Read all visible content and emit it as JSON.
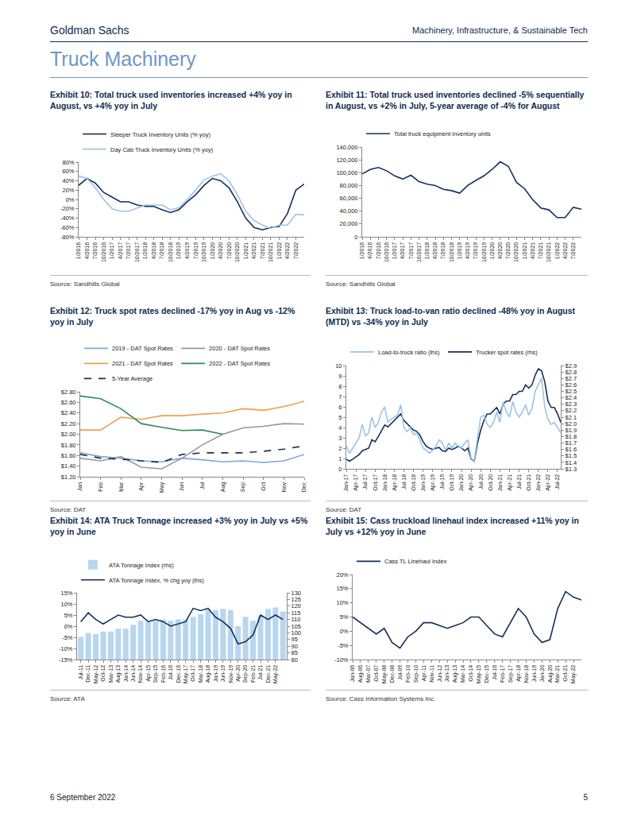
{
  "page": {
    "header_left": "Goldman Sachs",
    "header_right": "Machinery, Infrastructure, & Sustainable Tech",
    "section_title": "Truck Machinery",
    "footer_left": "6 September 2022",
    "footer_right": "5"
  },
  "chart_data": [
    {
      "type": "line",
      "title": "Exhibit 10: Total truck used inventories increased +4% yoy in August, vs +4% yoy in July",
      "source": "Source: Sandhills Global",
      "legend": "top",
      "grid": false,
      "categories": [
        "1/2016",
        "4/2016",
        "7/2016",
        "10/2016",
        "1/2017",
        "4/2017",
        "7/2017",
        "10/2017",
        "1/2018",
        "4/2018",
        "7/2018",
        "10/2018",
        "1/2019",
        "4/2019",
        "7/2019",
        "10/2019",
        "1/2020",
        "4/2020",
        "7/2020",
        "10/2020",
        "1/2021",
        "4/2021",
        "7/2021",
        "10/2021",
        "1/2022",
        "4/2022",
        "7/2022",
        null
      ],
      "series": [
        {
          "name": "Sleeper Truck Inventory Units (% yoy)",
          "color": "#14305c",
          "values": [
            30,
            45,
            35,
            15,
            5,
            -5,
            -5,
            -12,
            -15,
            -15,
            -22,
            -28,
            -22,
            -5,
            10,
            30,
            45,
            40,
            25,
            -5,
            -40,
            -60,
            -65,
            -60,
            -58,
            -30,
            20,
            33
          ]
        },
        {
          "name": "Day Cab Truck Inventory Units (% yoy)",
          "color": "#9dc3e6",
          "values": [
            50,
            45,
            25,
            0,
            -20,
            -25,
            -25,
            -18,
            -12,
            -12,
            -12,
            -22,
            -18,
            0,
            20,
            42,
            50,
            55,
            40,
            10,
            -25,
            -45,
            -55,
            -62,
            -55,
            -55,
            -32,
            -33
          ]
        }
      ],
      "ylim": [
        -80,
        80
      ],
      "yticks": [
        {
          "value": -80,
          "label": "-80%"
        },
        {
          "value": -60,
          "label": "-60%"
        },
        {
          "value": -40,
          "label": "-40%"
        },
        {
          "value": -20,
          "label": "-20%"
        },
        {
          "value": 0,
          "label": "0%"
        },
        {
          "value": 20,
          "label": "20%"
        },
        {
          "value": 40,
          "label": "40%"
        },
        {
          "value": 60,
          "label": "60%"
        },
        {
          "value": 80,
          "label": "80%"
        }
      ]
    },
    {
      "type": "line",
      "title": "Exhibit 11: Total truck used inventories declined -5% sequentially in August, vs +2% in July, 5-year average of -4% for August",
      "source": "Source: Sandhills Global",
      "legend": "top",
      "grid": false,
      "categories": [
        "1/2016",
        "4/2016",
        "7/2016",
        "10/2016",
        "1/2017",
        "4/2017",
        "7/2017",
        "10/2017",
        "1/2018",
        "4/2018",
        "7/2018",
        "10/2018",
        "1/2019",
        "4/2019",
        "7/2019",
        "10/2019",
        "1/2020",
        "4/2020",
        "7/2020",
        "10/2020",
        "1/2021",
        "4/2021",
        "7/2021",
        "10/2021",
        "1/2022",
        "4/2022",
        "7/2022",
        null
      ],
      "series": [
        {
          "name": "Total truck equipment inventory units",
          "color": "#14305c",
          "values": [
            98000,
            105000,
            108000,
            103000,
            95000,
            90000,
            96000,
            86000,
            82000,
            80000,
            74000,
            72000,
            68000,
            80000,
            88000,
            95000,
            105000,
            117000,
            110000,
            85000,
            75000,
            58000,
            45000,
            42000,
            30000,
            30000,
            46000,
            43000
          ]
        }
      ],
      "ylim": [
        0,
        140000
      ],
      "yticks": [
        0,
        {
          "value": 20000,
          "label": "20,000"
        },
        {
          "value": 40000,
          "label": "40,000"
        },
        {
          "value": 60000,
          "label": "60,000"
        },
        {
          "value": 80000,
          "label": "80,000"
        },
        {
          "value": 100000,
          "label": "100,000"
        },
        {
          "value": 120000,
          "label": "120,000"
        },
        {
          "value": 140000,
          "label": "140,000"
        }
      ]
    },
    {
      "type": "line",
      "title": "Exhibit 12: Truck spot rates declined -17% yoy in Aug vs -12% yoy in July",
      "source": "Source: DAT",
      "legend": "top",
      "grid": false,
      "categories": [
        "Jan",
        "Feb",
        "Mar",
        "Apr",
        "May",
        "Jun",
        "Jul",
        "Aug",
        "Sep",
        "Oct",
        "Nov",
        "Dec"
      ],
      "series": [
        {
          "name": "2019 - DAT Spot Rates",
          "color": "#7fa7d6",
          "values": [
            1.65,
            1.58,
            1.55,
            1.5,
            1.48,
            1.55,
            1.52,
            1.48,
            1.5,
            1.47,
            1.5,
            1.62
          ]
        },
        {
          "name": "2020 - DAT Spot Rates",
          "color": "#999999",
          "values": [
            1.55,
            1.5,
            1.58,
            1.38,
            1.35,
            1.55,
            1.8,
            2.0,
            2.12,
            2.15,
            2.2,
            2.19
          ]
        },
        {
          "name": "2021 - DAT Spot Rates",
          "color": "#f0a050",
          "values": [
            2.08,
            2.08,
            2.32,
            2.28,
            2.35,
            2.35,
            2.38,
            2.4,
            2.48,
            2.45,
            2.52,
            2.62
          ]
        },
        {
          "name": "2022 - DAT Spot Rates",
          "color": "#2e8b57",
          "values": [
            2.72,
            2.67,
            2.48,
            2.2,
            2.13,
            2.07,
            2.08,
            2.0,
            null,
            null,
            null,
            null
          ]
        },
        {
          "name": "5-Year Average",
          "color": "#14305c",
          "line_style": "dashed",
          "values": [
            1.62,
            1.55,
            1.53,
            1.5,
            1.47,
            1.62,
            1.65,
            1.65,
            1.65,
            1.68,
            1.72,
            1.78
          ]
        }
      ],
      "ylim": [
        1.2,
        2.8
      ],
      "yticks": [
        {
          "value": 1.2,
          "label": "$1.20"
        },
        {
          "value": 1.4,
          "label": "$1.40"
        },
        {
          "value": 1.6,
          "label": "$1.60"
        },
        {
          "value": 1.8,
          "label": "$1.80"
        },
        {
          "value": 2.0,
          "label": "$2.00"
        },
        {
          "value": 2.2,
          "label": "$2.20"
        },
        {
          "value": 2.4,
          "label": "$2.40"
        },
        {
          "value": 2.6,
          "label": "$2.60"
        },
        {
          "value": 2.8,
          "label": "$2.80"
        }
      ]
    },
    {
      "type": "line",
      "title": "Exhibit 13: Truck load-to-van ratio declined -48% yoy in August (MTD) vs -34% yoy in July",
      "source": "Source: DAT",
      "legend": "top",
      "grid": false,
      "categories": [
        "Jan-17",
        null,
        null,
        "Apr-17",
        null,
        null,
        "Jul-17",
        null,
        null,
        "Oct-17",
        null,
        null,
        "Jan-18",
        null,
        null,
        "Apr-18",
        null,
        null,
        "Jul-18",
        null,
        null,
        "Oct-18",
        null,
        null,
        "Jan-19",
        null,
        null,
        "Apr-19",
        null,
        null,
        "Jul-19",
        null,
        null,
        "Oct-19",
        null,
        null,
        "Jan-20",
        null,
        null,
        "Apr-20",
        null,
        null,
        "Jul-20",
        null,
        null,
        "Oct-20",
        null,
        null,
        "Jan-21",
        null,
        null,
        "Apr-21",
        null,
        null,
        "Jul-21",
        null,
        null,
        "Oct-21",
        null,
        null,
        "Jan-22",
        null,
        null,
        "Apr-22",
        null,
        null,
        "Jul-22",
        null
      ],
      "series": [
        {
          "name": "Load-to-truck ratio (lhs)",
          "color": "#9dc3e6",
          "values": [
            2.2,
            1.5,
            2.0,
            2.5,
            3.0,
            4.3,
            3.2,
            3.5,
            5.0,
            4.0,
            4.5,
            5.5,
            6.0,
            4.5,
            4.8,
            5.0,
            5.2,
            6.2,
            4.0,
            3.6,
            4.0,
            3.3,
            3.5,
            2.8,
            2.0,
            1.8,
            1.5,
            1.8,
            2.2,
            2.8,
            2.5,
            1.8,
            2.5,
            2.0,
            2.5,
            2.2,
            2.0,
            2.5,
            2.8,
            1.0,
            0.8,
            3.0,
            5.0,
            5.2,
            4.3,
            4.0,
            4.5,
            5.5,
            4.5,
            6.5,
            5.5,
            5.0,
            6.5,
            5.5,
            5.0,
            5.5,
            6.2,
            5.2,
            5.8,
            7.5,
            8.2,
            8.8,
            6.0,
            4.8,
            4.3,
            4.5,
            4.0,
            3.5
          ]
        },
        {
          "name": "Trucker spot rates (rhs)",
          "color": "#14305c",
          "axis": "y2",
          "values": [
            1.45,
            1.42,
            1.45,
            1.48,
            1.52,
            1.58,
            1.6,
            1.62,
            1.75,
            1.72,
            1.8,
            1.9,
            1.98,
            1.95,
            2.0,
            2.05,
            2.1,
            2.15,
            2.05,
            2.0,
            1.95,
            1.9,
            1.88,
            1.82,
            1.72,
            1.65,
            1.62,
            1.6,
            1.62,
            1.63,
            1.58,
            1.57,
            1.62,
            1.6,
            1.62,
            1.65,
            1.62,
            1.58,
            1.62,
            1.45,
            1.42,
            1.7,
            1.9,
            2.05,
            2.15,
            2.15,
            2.2,
            2.25,
            2.15,
            2.3,
            2.35,
            2.35,
            2.45,
            2.45,
            2.5,
            2.5,
            2.6,
            2.55,
            2.6,
            2.75,
            2.85,
            2.82,
            2.65,
            2.35,
            2.25,
            2.25,
            2.15,
            2.02
          ]
        }
      ],
      "ylim": [
        0,
        10
      ],
      "yticks": [
        0,
        1,
        2,
        3,
        4,
        5,
        6,
        7,
        8,
        9,
        10
      ],
      "y2lim": [
        1.3,
        2.9
      ],
      "y2ticks": [
        {
          "value": 1.3,
          "label": "$1.3"
        },
        {
          "value": 1.4,
          "label": "$1.4"
        },
        {
          "value": 1.5,
          "label": "$1.5"
        },
        {
          "value": 1.6,
          "label": "$1.6"
        },
        {
          "value": 1.7,
          "label": "$1.7"
        },
        {
          "value": 1.8,
          "label": "$1.8"
        },
        {
          "value": 1.9,
          "label": "$1.9"
        },
        {
          "value": 2.0,
          "label": "$2.0"
        },
        {
          "value": 2.1,
          "label": "$2.1"
        },
        {
          "value": 2.2,
          "label": "$2.2"
        },
        {
          "value": 2.3,
          "label": "$2.3"
        },
        {
          "value": 2.4,
          "label": "$2.4"
        },
        {
          "value": 2.5,
          "label": "$2.5"
        },
        {
          "value": 2.6,
          "label": "$2.6"
        },
        {
          "value": 2.7,
          "label": "$2.7"
        },
        {
          "value": 2.8,
          "label": "$2.8"
        },
        {
          "value": 2.9,
          "label": "$2.9"
        }
      ]
    },
    {
      "type": "bar",
      "title": "Exhibit 14: ATA Truck Tonnage increased +3% yoy in July vs +5% yoy in June",
      "source": "Source: ATA",
      "legend": "top",
      "grid": false,
      "categories": [
        "Jul-11",
        "Dec-11",
        "May-12",
        "Oct-12",
        "Mar-13",
        "Aug-13",
        "Jan-14",
        "Jun-14",
        "Nov-14",
        "Apr-15",
        "Sep-15",
        "Feb-16",
        "Jul-16",
        "Dec-16",
        "May-17",
        "Oct-17",
        "Mar-18",
        "Aug-18",
        "Jan-19",
        "Jun-19",
        "Nov-19",
        "Apr-20",
        "Sep-20",
        "Feb-21",
        "Jul-21",
        "Dec-21",
        "May-22",
        null
      ],
      "series": [
        {
          "name": "ATA Tonnage Index (rhs)",
          "color": "#b9d6ef",
          "type": "bar",
          "axis": "y2",
          "values": [
            97,
            100,
            99,
            101,
            101,
            103,
            103,
            106,
            109,
            108,
            109,
            110,
            109,
            110,
            110,
            112,
            114,
            118,
            117,
            118,
            117,
            105,
            112,
            109,
            113,
            118,
            119,
            116
          ]
        },
        {
          "name": "ATA Tonnage Index, % chg yoy (lhs)",
          "color": "#14305c",
          "type": "line",
          "values": [
            2,
            6,
            3,
            1,
            3,
            5,
            4,
            4,
            5,
            2,
            3,
            2,
            0,
            1,
            2,
            8,
            7,
            8,
            4,
            2,
            -1,
            -8,
            -7,
            -4,
            5,
            3,
            5,
            3
          ]
        }
      ],
      "ylim": [
        -15,
        15
      ],
      "yticks": [
        {
          "value": -15,
          "label": "-15%"
        },
        {
          "value": -10,
          "label": "-10%"
        },
        {
          "value": -5,
          "label": "-5%"
        },
        {
          "value": 0,
          "label": "0%"
        },
        {
          "value": 5,
          "label": "5%"
        },
        {
          "value": 10,
          "label": "10%"
        },
        {
          "value": 15,
          "label": "15%"
        }
      ],
      "y2lim": [
        80,
        130
      ],
      "y2ticks": [
        80,
        85,
        90,
        95,
        100,
        105,
        110,
        115,
        120,
        125,
        130
      ]
    },
    {
      "type": "line",
      "title": "Exhibit 15: Cass truckload linehaul index increased +11% yoy in July vs +12% yoy in June",
      "source": "Source: Cass Information Systems Inc.",
      "legend": "top",
      "grid": false,
      "categories": [
        "Jan-06",
        "Aug-06",
        "Mar-07",
        "Oct-07",
        "May-08",
        "Dec-08",
        "Jul-09",
        "Feb-10",
        "Sep-10",
        "Apr-11",
        "Nov-11",
        "Jun-12",
        "Jan-13",
        "Aug-13",
        "Mar-14",
        "Oct-14",
        "May-15",
        "Dec-15",
        "Jul-16",
        "Feb-17",
        "Sep-17",
        "Apr-18",
        "Nov-18",
        "Jun-19",
        "Jan-20",
        "Aug-20",
        "Mar-21",
        "Oct-21",
        "May-22",
        null
      ],
      "series": [
        {
          "name": "Cass TL Linehaul Index",
          "color": "#14305c",
          "values": [
            5,
            3,
            1,
            -1,
            1,
            -4,
            -6,
            -2,
            0,
            3,
            3,
            2,
            1,
            2,
            3,
            5,
            5,
            2,
            -1,
            -2,
            3,
            8,
            5,
            -1,
            -4,
            -3,
            8,
            14,
            12,
            11
          ]
        }
      ],
      "ylim": [
        -10,
        20
      ],
      "yticks": [
        {
          "value": -10,
          "label": "-10%"
        },
        {
          "value": -5,
          "label": "-5%"
        },
        {
          "value": 0,
          "label": "0%"
        },
        {
          "value": 5,
          "label": "5%"
        },
        {
          "value": 10,
          "label": "10%"
        },
        {
          "value": 15,
          "label": "15%"
        },
        {
          "value": 20,
          "label": "20%"
        }
      ]
    }
  ]
}
